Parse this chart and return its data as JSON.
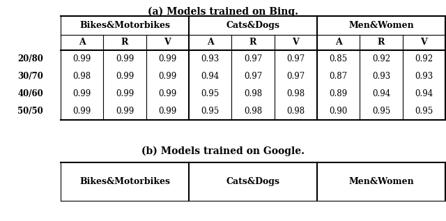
{
  "title_a": "(a) Models trained on Bing.",
  "title_b": "(b) Models trained on Google.",
  "group_headers": [
    "Bikes&Motorbikes",
    "Cats&Dogs",
    "Men&Women"
  ],
  "sub_headers": [
    "A",
    "R",
    "V"
  ],
  "row_labels": [
    "20/80",
    "30/70",
    "40/60",
    "50/50"
  ],
  "data_a": [
    [
      0.99,
      0.99,
      0.99,
      0.93,
      0.97,
      0.97,
      0.85,
      0.92,
      0.92
    ],
    [
      0.98,
      0.99,
      0.99,
      0.94,
      0.97,
      0.97,
      0.87,
      0.93,
      0.93
    ],
    [
      0.99,
      0.99,
      0.99,
      0.95,
      0.98,
      0.98,
      0.89,
      0.94,
      0.94
    ],
    [
      0.99,
      0.99,
      0.99,
      0.95,
      0.98,
      0.98,
      0.9,
      0.95,
      0.95
    ]
  ],
  "background_color": "#ffffff",
  "text_color": "#000000",
  "line_color": "#000000",
  "font_size_title": 10,
  "font_size_header": 9,
  "font_size_data": 8.5,
  "font_size_sub": 9
}
